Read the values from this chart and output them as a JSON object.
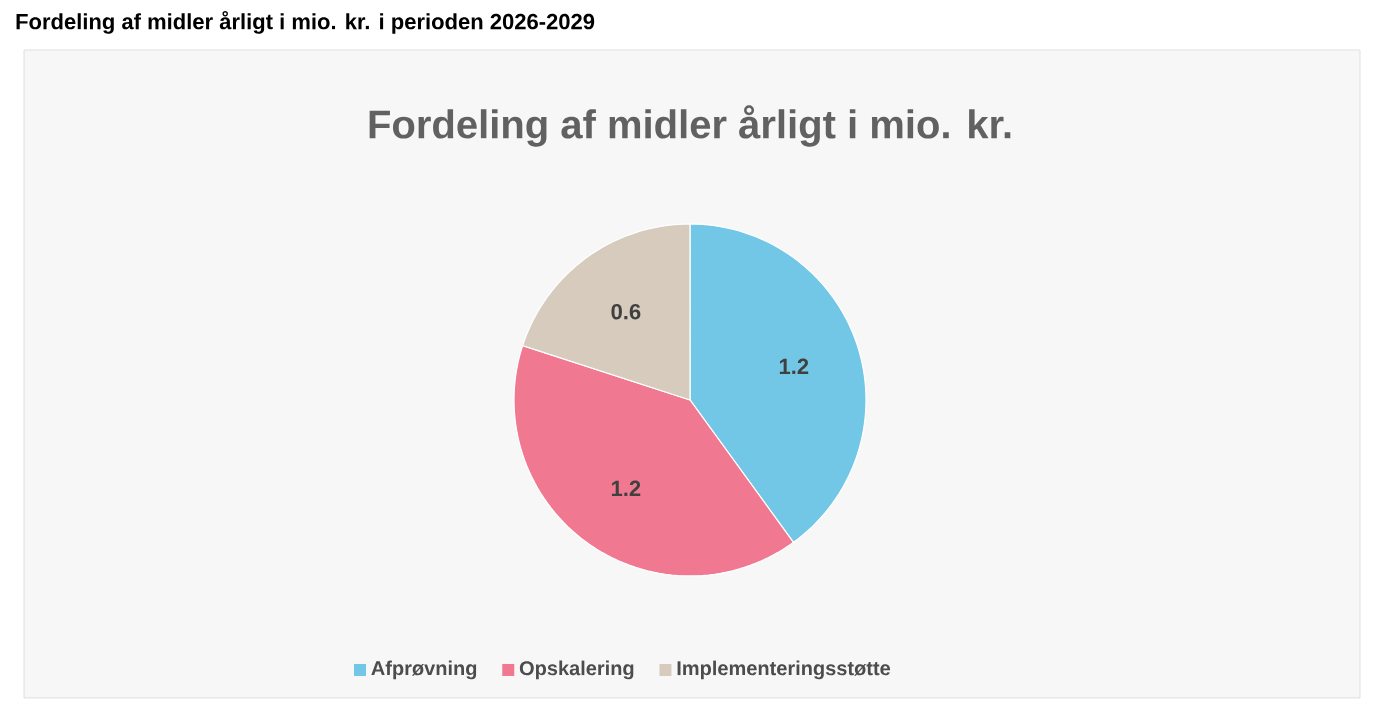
{
  "chart_data": {
    "type": "pie",
    "title": "Fordeling af midler årligt i mio. kr. i perioden 2026-2029",
    "subtitle": "Fordeling af midler årligt i mio. kr.",
    "categories": [
      "Afprøvning",
      "Opskalering",
      "Implementeringsstøtte"
    ],
    "values": [
      1.2,
      1.2,
      0.6
    ],
    "colors": [
      "#72c6e6",
      "#f07891",
      "#d6cbbd"
    ],
    "data_labels": true,
    "legend": "bottom"
  }
}
